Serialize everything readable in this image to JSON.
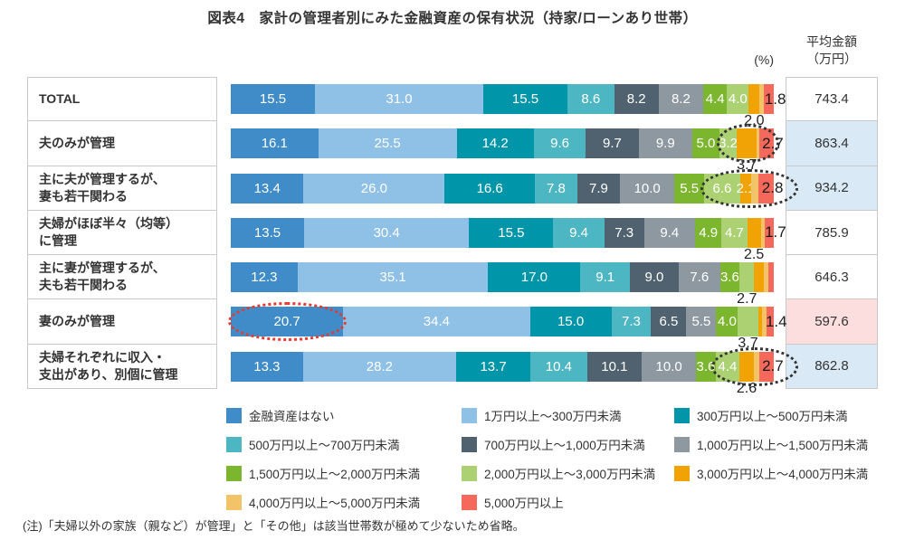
{
  "title": "図表4　家計の管理者別にみた金融資産の保有状況（持家/ローンあり世帯）",
  "percent_unit": "(%)",
  "avg_header": {
    "line1": "平均金額",
    "line2": "（万円）"
  },
  "note": "(注)「夫婦以外の家族（親など）が管理」と「その他」は該当世帯数が極めて少ないため省略。",
  "chart_data": {
    "type": "bar",
    "subtype": "horizontal-stacked",
    "unit": "%",
    "xlim": [
      0,
      100
    ],
    "legend_position": "bottom",
    "legend": [
      {
        "label": "金融資産はない",
        "color": "#3f8cc8"
      },
      {
        "label": "1万円以上～300万円未満",
        "color": "#8fc0e5"
      },
      {
        "label": "300万円以上～500万円未満",
        "color": "#0095a8"
      },
      {
        "label": "500万円以上～700万円未満",
        "color": "#4db6c3"
      },
      {
        "label": "700万円以上～1,000万円未満",
        "color": "#50626f"
      },
      {
        "label": "1,000万円以上～1,500万円未満",
        "color": "#8d98a1"
      },
      {
        "label": "1,500万円以上～2,000万円未満",
        "color": "#7cb52e"
      },
      {
        "label": "2,000万円以上～3,000万円未満",
        "color": "#abd173"
      },
      {
        "label": "3,000万円以上～4,000万円未満",
        "color": "#f1a205"
      },
      {
        "label": "4,000万円以上～5,000万円未満",
        "color": "#f3c367"
      },
      {
        "label": "5,000万円以上",
        "color": "#f4695c"
      }
    ],
    "avg_column_header": "平均金額（万円）",
    "rows": [
      {
        "label_lines": [
          "TOTAL"
        ],
        "avg": "743.4",
        "avg_bg": "#ffffff",
        "values": [
          15.5,
          31.0,
          15.5,
          8.6,
          8.2,
          8.2,
          4.4,
          4.0,
          2.0,
          0.8,
          1.8
        ],
        "labels": [
          "15.5",
          "31.0",
          "15.5",
          "8.6",
          "8.2",
          "8.2",
          "4.4",
          "4.0",
          "2.0",
          "",
          "1.8"
        ],
        "label_pos": [
          "in",
          "in",
          "in",
          "in",
          "in",
          "in",
          "in",
          "in",
          "below",
          "none",
          "end"
        ]
      },
      {
        "label_lines": [
          "夫のみが管理"
        ],
        "avg": "863.4",
        "avg_bg": "#d9e9f5",
        "values": [
          16.1,
          25.5,
          14.2,
          9.6,
          9.7,
          9.9,
          5.0,
          3.2,
          3.7,
          0.4,
          2.7
        ],
        "labels": [
          "16.1",
          "25.5",
          "14.2",
          "9.6",
          "9.7",
          "9.9",
          "5.0",
          "3.2",
          "3.7",
          "",
          "2.7"
        ],
        "label_pos": [
          "in",
          "in",
          "in",
          "in",
          "in",
          "in",
          "in",
          "in",
          "below",
          "none",
          "end"
        ]
      },
      {
        "label_lines": [
          "主に夫が管理するが、",
          "妻も若干関わる"
        ],
        "avg": "934.2",
        "avg_bg": "#d9e9f5",
        "values": [
          13.4,
          26.0,
          16.6,
          7.8,
          7.9,
          10.0,
          5.5,
          6.6,
          2.1,
          1.3,
          2.8
        ],
        "labels": [
          "13.4",
          "26.0",
          "16.6",
          "7.8",
          "7.9",
          "10.0",
          "5.5",
          "6.6",
          "2.1",
          "",
          "2.8"
        ],
        "label_pos": [
          "in",
          "in",
          "in",
          "in",
          "in",
          "in",
          "in",
          "in",
          "in",
          "none",
          "end"
        ]
      },
      {
        "label_lines": [
          "夫婦がほぼ半々（均等）",
          "に管理"
        ],
        "avg": "785.9",
        "avg_bg": "#ffffff",
        "values": [
          13.5,
          30.4,
          15.5,
          9.4,
          7.3,
          9.4,
          4.9,
          4.7,
          2.5,
          0.7,
          1.7
        ],
        "labels": [
          "13.5",
          "30.4",
          "15.5",
          "9.4",
          "7.3",
          "9.4",
          "4.9",
          "4.7",
          "2.5",
          "",
          "1.7"
        ],
        "label_pos": [
          "in",
          "in",
          "in",
          "in",
          "in",
          "in",
          "in",
          "in",
          "below",
          "none",
          "end"
        ]
      },
      {
        "label_lines": [
          "主に妻が管理するが、",
          "夫も若干関わる"
        ],
        "avg": "646.3",
        "avg_bg": "#ffffff",
        "values": [
          12.3,
          35.1,
          17.0,
          9.1,
          9.0,
          7.6,
          3.6,
          2.7,
          1.8,
          0.8,
          1.0
        ],
        "labels": [
          "12.3",
          "35.1",
          "17.0",
          "9.1",
          "9.0",
          "7.6",
          "3.6",
          "2.7",
          "",
          "",
          ""
        ],
        "label_pos": [
          "in",
          "in",
          "in",
          "in",
          "in",
          "in",
          "in",
          "below",
          "none",
          "none",
          "none"
        ]
      },
      {
        "label_lines": [
          "妻のみが管理"
        ],
        "avg": "597.6",
        "avg_bg": "#fbdedd",
        "values": [
          20.7,
          34.4,
          15.0,
          7.3,
          6.5,
          5.5,
          4.0,
          3.7,
          0.8,
          0.7,
          1.4
        ],
        "labels": [
          "20.7",
          "34.4",
          "15.0",
          "7.3",
          "6.5",
          "5.5",
          "4.0",
          "3.7",
          "",
          "",
          "1.4"
        ],
        "label_pos": [
          "in",
          "in",
          "in",
          "in",
          "in",
          "in",
          "in",
          "below",
          "none",
          "none",
          "end"
        ]
      },
      {
        "label_lines": [
          "夫婦それぞれに収入・",
          "支出があり、別個に管理"
        ],
        "avg": "862.8",
        "avg_bg": "#d9e9f5",
        "values": [
          13.3,
          28.2,
          13.7,
          10.4,
          10.1,
          10.0,
          3.6,
          4.4,
          2.6,
          1.0,
          2.7
        ],
        "labels": [
          "13.3",
          "28.2",
          "13.7",
          "10.4",
          "10.1",
          "10.0",
          "3.6",
          "4.4",
          "2.6",
          "",
          "2.7"
        ],
        "label_pos": [
          "in",
          "in",
          "in",
          "in",
          "in",
          "in",
          "in",
          "in",
          "below",
          "none",
          "end"
        ]
      }
    ],
    "annotations": [
      {
        "row": 1,
        "from_pct": 89.5,
        "to_pct": 101.0,
        "color": "#333333",
        "shape": "dotted-ellipse"
      },
      {
        "row": 2,
        "from_pct": 86.5,
        "to_pct": 104.5,
        "color": "#333333",
        "shape": "dotted-ellipse"
      },
      {
        "row": 5,
        "from_pct": -0.5,
        "to_pct": 21.3,
        "color": "#e8392f",
        "shape": "dotted-ellipse"
      },
      {
        "row": 6,
        "from_pct": 88.5,
        "to_pct": 104.5,
        "color": "#333333",
        "shape": "dotted-ellipse"
      }
    ]
  }
}
